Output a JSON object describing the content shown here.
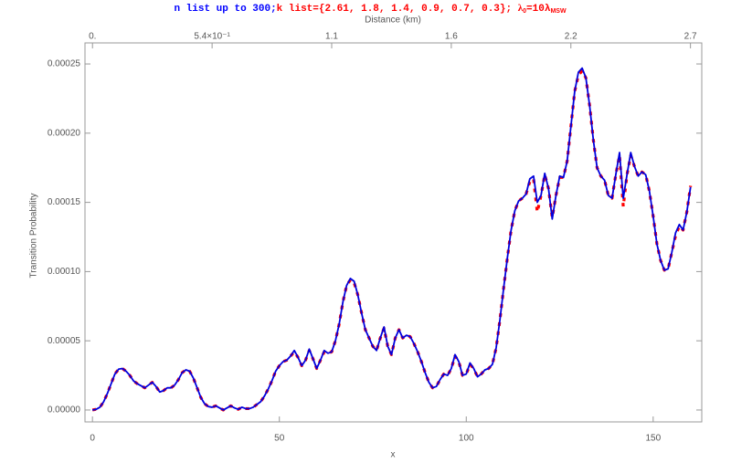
{
  "chart_data": {
    "type": "line",
    "title_parts": [
      {
        "text": "n list up to 300;",
        "color": "#0000ff"
      },
      {
        "text": "k list={2.61, 1.8, 1.4, 0.9, 0.7, 0.3}; ",
        "color": "#ff0000"
      },
      {
        "text": "λ",
        "color": "#ff0000"
      },
      {
        "text": "0",
        "color": "#ff0000",
        "baseline": "sub"
      },
      {
        "text": "=10λ",
        "color": "#ff0000"
      },
      {
        "text": "MSW",
        "color": "#ff0000",
        "baseline": "sub"
      }
    ],
    "x_label": "x",
    "y_label": "Transition Probability",
    "x2_label": "Distance (km)",
    "xlim": [
      -2,
      163
    ],
    "xticks": [
      0,
      50,
      100,
      150
    ],
    "x2lim": [
      -0.034,
      2.751
    ],
    "x2ticks": [
      {
        "value": 0,
        "label": "0."
      },
      {
        "value": 0.54,
        "label": "5.4×10⁻¹"
      },
      {
        "value": 1.08,
        "label": "1.1"
      },
      {
        "value": 1.62,
        "label": "1.6"
      },
      {
        "value": 2.16,
        "label": "2.2"
      },
      {
        "value": 2.7,
        "label": "2.7"
      }
    ],
    "ylim": [
      -8.6e-06,
      0.0002652
    ],
    "yticks": [
      {
        "value": 0,
        "label": "0.00000"
      },
      {
        "value": 5e-05,
        "label": "0.00005"
      },
      {
        "value": 0.0001,
        "label": "0.00010"
      },
      {
        "value": 0.00015,
        "label": "0.00015"
      },
      {
        "value": 0.0002,
        "label": "0.00020"
      },
      {
        "value": 0.00025,
        "label": "0.00025"
      }
    ],
    "grid": false,
    "x": [
      0,
      1,
      2,
      3,
      4,
      5,
      6,
      7,
      8,
      9,
      10,
      11,
      12,
      13,
      14,
      15,
      16,
      17,
      18,
      19,
      20,
      21,
      22,
      23,
      24,
      25,
      26,
      27,
      28,
      29,
      30,
      31,
      32,
      33,
      34,
      35,
      36,
      37,
      38,
      39,
      40,
      41,
      42,
      43,
      44,
      45,
      46,
      47,
      48,
      49,
      50,
      51,
      52,
      53,
      54,
      55,
      56,
      57,
      58,
      59,
      60,
      61,
      62,
      63,
      64,
      65,
      66,
      67,
      68,
      69,
      70,
      71,
      72,
      73,
      74,
      75,
      76,
      77,
      78,
      79,
      80,
      81,
      82,
      83,
      84,
      85,
      86,
      87,
      88,
      89,
      90,
      91,
      92,
      93,
      94,
      95,
      96,
      97,
      98,
      99,
      100,
      101,
      102,
      103,
      104,
      105,
      106,
      107,
      108,
      109,
      110,
      111,
      112,
      113,
      114,
      115,
      116,
      117,
      118,
      119,
      120,
      121,
      122,
      123,
      124,
      125,
      126,
      127,
      128,
      129,
      130,
      131,
      132,
      133,
      134,
      135,
      136,
      137,
      138,
      139,
      140,
      141,
      142,
      143,
      144,
      145,
      146,
      147,
      148,
      149,
      150,
      151,
      152,
      153,
      154,
      155,
      156,
      157,
      158,
      159,
      160
    ],
    "series": [
      {
        "color": "#ff0000",
        "dashed": true,
        "values": [
          0,
          5e-07,
          2e-06,
          6e-06,
          1.2e-05,
          1.9e-05,
          2.6e-05,
          2.95e-05,
          3e-05,
          2.8e-05,
          2.5e-05,
          2.1e-05,
          1.9e-05,
          1.75e-05,
          1.6e-05,
          1.8e-05,
          2e-05,
          1.7e-05,
          1.3e-05,
          1.4e-05,
          1.6e-05,
          1.6e-05,
          1.8e-05,
          2.2e-05,
          2.7e-05,
          2.9e-05,
          2.8e-05,
          2.3e-05,
          1.6e-05,
          9e-06,
          4.5e-06,
          2.5e-06,
          2e-06,
          3e-06,
          1.5e-06,
          0,
          1.5e-06,
          3e-06,
          1.5e-06,
          5e-07,
          2e-06,
          1e-06,
          1e-06,
          2e-06,
          4e-06,
          6e-06,
          1e-05,
          1.5e-05,
          2.1e-05,
          2.8e-05,
          3.2e-05,
          3.5e-05,
          3.6e-05,
          3.9e-05,
          4.2e-05,
          3.8e-05,
          3.2e-05,
          3.6e-05,
          4.3e-05,
          3.7e-05,
          3e-05,
          3.6e-05,
          4.2e-05,
          4.1e-05,
          4.2e-05,
          5e-05,
          6.2e-05,
          7.8e-05,
          9e-05,
          9.4e-05,
          9.2e-05,
          8.3e-05,
          7e-05,
          5.8e-05,
          5.2e-05,
          4.6e-05,
          4.3e-05,
          5.2e-05,
          5.9e-05,
          4.6e-05,
          4e-05,
          5.2e-05,
          5.8e-05,
          5.2e-05,
          5.4e-05,
          5.3e-05,
          4.8e-05,
          4.2e-05,
          3.5e-05,
          2.7e-05,
          2e-05,
          1.6e-05,
          1.7e-05,
          2.2e-05,
          2.6e-05,
          2.5e-05,
          3e-05,
          3.9e-05,
          3.5e-05,
          2.5e-05,
          2.6e-05,
          3.3e-05,
          3e-05,
          2.4e-05,
          2.6e-05,
          2.9e-05,
          3e-05,
          3.3e-05,
          4.5e-05,
          6.5e-05,
          8.8e-05,
          0.00011,
          0.00013,
          0.000144,
          0.000151,
          0.000153,
          0.000156,
          0.000165,
          0.000167,
          0.000143,
          0.000155,
          0.00017,
          0.00016,
          0.000139,
          0.000155,
          0.000168,
          0.000168,
          0.00018,
          0.000205,
          0.00023,
          0.000242,
          0.000245,
          0.00024,
          0.00022,
          0.000195,
          0.000175,
          0.000169,
          0.000166,
          0.000155,
          0.000153,
          0.00017,
          0.000184,
          0.000147,
          0.00017,
          0.000184,
          0.000176,
          0.000169,
          0.000172,
          0.00017,
          0.000158,
          0.00014,
          0.00012,
          0.000108,
          0.000101,
          0.000102,
          0.000114,
          0.000126,
          0.000133,
          0.00013,
          0.000143,
          0.000162
        ]
      },
      {
        "color": "#0000dd",
        "dashed": false,
        "values": [
          0,
          5e-07,
          2e-06,
          6e-06,
          1.2e-05,
          1.9e-05,
          2.6e-05,
          2.95e-05,
          3e-05,
          2.8e-05,
          2.5e-05,
          2.1e-05,
          1.9e-05,
          1.75e-05,
          1.6e-05,
          1.8e-05,
          2e-05,
          1.7e-05,
          1.3e-05,
          1.4e-05,
          1.6e-05,
          1.6e-05,
          1.8e-05,
          2.2e-05,
          2.7e-05,
          2.9e-05,
          2.8e-05,
          2.3e-05,
          1.6e-05,
          9e-06,
          4.5e-06,
          2.5e-06,
          2e-06,
          3e-06,
          1.5e-06,
          0,
          1.5e-06,
          3e-06,
          1.5e-06,
          5e-07,
          2e-06,
          1e-06,
          1e-06,
          2e-06,
          4e-06,
          6e-06,
          1e-05,
          1.5e-05,
          2.1e-05,
          2.8e-05,
          3.2e-05,
          3.5e-05,
          3.6e-05,
          3.9e-05,
          4.3e-05,
          3.8e-05,
          3.2e-05,
          3.6e-05,
          4.4e-05,
          3.7e-05,
          3e-05,
          3.6e-05,
          4.3e-05,
          4.1e-05,
          4.2e-05,
          5e-05,
          6.2e-05,
          7.8e-05,
          9e-05,
          9.5e-05,
          9.3e-05,
          8.3e-05,
          7e-05,
          5.8e-05,
          5.2e-05,
          4.6e-05,
          4.3e-05,
          5.2e-05,
          6e-05,
          4.6e-05,
          4e-05,
          5.2e-05,
          5.8e-05,
          5.2e-05,
          5.4e-05,
          5.3e-05,
          4.8e-05,
          4.2e-05,
          3.5e-05,
          2.7e-05,
          2e-05,
          1.6e-05,
          1.7e-05,
          2.2e-05,
          2.6e-05,
          2.5e-05,
          3e-05,
          4e-05,
          3.5e-05,
          2.5e-05,
          2.6e-05,
          3.4e-05,
          3e-05,
          2.4e-05,
          2.6e-05,
          2.9e-05,
          3e-05,
          3.3e-05,
          4.5e-05,
          6.5e-05,
          8.8e-05,
          0.00011,
          0.00013,
          0.000144,
          0.000151,
          0.000153,
          0.000156,
          0.000167,
          0.000169,
          0.00015,
          0.000155,
          0.000171,
          0.00016,
          0.000138,
          0.000155,
          0.000169,
          0.000168,
          0.00018,
          0.000205,
          0.00023,
          0.000244,
          0.000247,
          0.00024,
          0.00022,
          0.000195,
          0.000175,
          0.000169,
          0.000166,
          0.000155,
          0.000153,
          0.00017,
          0.000186,
          0.000153,
          0.00017,
          0.000186,
          0.000176,
          0.000169,
          0.000172,
          0.00017,
          0.000158,
          0.00014,
          0.00012,
          0.000108,
          0.000101,
          0.000102,
          0.000114,
          0.000128,
          0.000134,
          0.00013,
          0.000143,
          0.000161
        ]
      }
    ]
  }
}
